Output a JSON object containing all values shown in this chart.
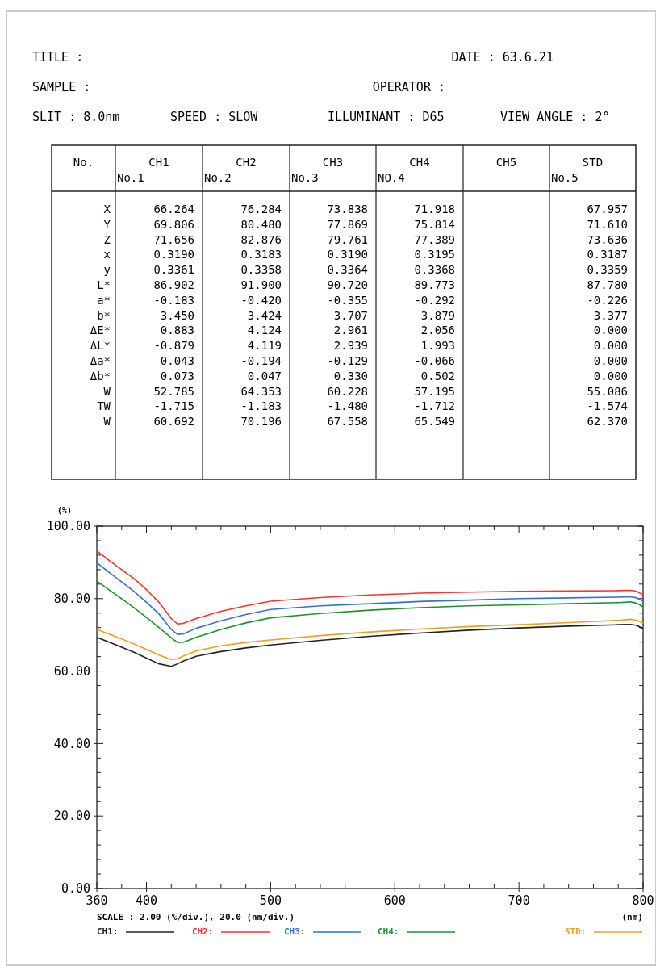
{
  "chart_data": [
    {
      "type": "other",
      "annotations": [
        "TITLE  :",
        "DATE : 63.6.21",
        "SAMPLE :",
        "OPERATOR :",
        "SLIT : 8.0nm",
        "SPEED : SLOW",
        "ILLUMINANT : D65",
        "VIEW ANGLE : 2°"
      ],
      "ylabel": "No.",
      "categories": [
        "CH1\nNo.1",
        "CH2\nNo.2",
        "CH3\nNo.3",
        "CH4\nNO.4",
        "CH5",
        "STD\nNo.5"
      ],
      "y_categories": [
        "X",
        "Y",
        "Z",
        "x",
        "y",
        "L*",
        "a*",
        "b*",
        "ΔE*",
        "ΔL*",
        "Δa*",
        "Δb*",
        "W",
        "TW",
        "W"
      ],
      "cell_labels": [
        [
          "66.264",
          "76.284",
          "73.838",
          "71.918",
          null,
          "67.957"
        ],
        [
          "69.806",
          "80.480",
          "77.869",
          "75.814",
          null,
          "71.610"
        ],
        [
          "71.656",
          "82.876",
          "79.761",
          "77.389",
          null,
          "73.636"
        ],
        [
          "0.3190",
          "0.3183",
          "0.3190",
          "0.3195",
          null,
          "0.3187"
        ],
        [
          "0.3361",
          "0.3358",
          "0.3364",
          "0.3368",
          null,
          "0.3359"
        ],
        [
          "86.902",
          "91.900",
          "90.720",
          "89.773",
          null,
          "87.780"
        ],
        [
          "-0.183",
          "-0.420",
          "-0.355",
          "-0.292",
          null,
          "-0.226"
        ],
        [
          "3.450",
          "3.424",
          "3.707",
          "3.879",
          null,
          "3.377"
        ],
        [
          "0.883",
          "4.124",
          "2.961",
          "2.056",
          null,
          "0.000"
        ],
        [
          "-0.879",
          "4.119",
          "2.939",
          "1.993",
          null,
          "0.000"
        ],
        [
          "0.043",
          "-0.194",
          "-0.129",
          "-0.066",
          null,
          "0.000"
        ],
        [
          "0.073",
          "0.047",
          "0.330",
          "0.502",
          null,
          "0.000"
        ],
        [
          "52.785",
          "64.353",
          "60.228",
          "57.195",
          null,
          "55.086"
        ],
        [
          "-1.715",
          "-1.183",
          "-1.480",
          "-1.712",
          null,
          "-1.574"
        ],
        [
          "60.692",
          "70.196",
          "67.558",
          "65.549",
          null,
          "62.370"
        ]
      ]
    },
    {
      "type": "line",
      "xlabel": "(nm)",
      "ylabel": "(%)",
      "annotations": [
        "SCALE : 2.00 (%/div.),  20.0 (nm/div.)"
      ],
      "legend": "bottom",
      "grid": false,
      "marker": "none",
      "line_style": "solid",
      "xlim": [
        360,
        800
      ],
      "ylim": [
        0,
        100
      ],
      "xticks": [
        360,
        {
          "value": 380,
          "label": null
        },
        400,
        {
          "value": 420,
          "label": null
        },
        {
          "value": 440,
          "label": null
        },
        {
          "value": 460,
          "label": null
        },
        {
          "value": 480,
          "label": null
        },
        500,
        {
          "value": 520,
          "label": null
        },
        {
          "value": 540,
          "label": null
        },
        {
          "value": 560,
          "label": null
        },
        {
          "value": 580,
          "label": null
        },
        600,
        {
          "value": 620,
          "label": null
        },
        {
          "value": 640,
          "label": null
        },
        {
          "value": 660,
          "label": null
        },
        {
          "value": 680,
          "label": null
        },
        700,
        {
          "value": 720,
          "label": null
        },
        {
          "value": 740,
          "label": null
        },
        {
          "value": 760,
          "label": null
        },
        {
          "value": 780,
          "label": null
        },
        800
      ],
      "yticks": [
        {
          "value": 0,
          "label": "0.00"
        },
        {
          "value": 4,
          "label": null
        },
        {
          "value": 8,
          "label": null
        },
        {
          "value": 12,
          "label": null
        },
        {
          "value": 16,
          "label": null
        },
        {
          "value": 20,
          "label": "20.00"
        },
        {
          "value": 24,
          "label": null
        },
        {
          "value": 28,
          "label": null
        },
        {
          "value": 32,
          "label": null
        },
        {
          "value": 36,
          "label": null
        },
        {
          "value": 40,
          "label": "40.00"
        },
        {
          "value": 44,
          "label": null
        },
        {
          "value": 48,
          "label": null
        },
        {
          "value": 52,
          "label": null
        },
        {
          "value": 56,
          "label": null
        },
        {
          "value": 60,
          "label": "60.00"
        },
        {
          "value": 64,
          "label": null
        },
        {
          "value": 68,
          "label": null
        },
        {
          "value": 72,
          "label": null
        },
        {
          "value": 76,
          "label": null
        },
        {
          "value": 80,
          "label": "80.00"
        },
        {
          "value": 84,
          "label": null
        },
        {
          "value": 88,
          "label": null
        },
        {
          "value": 92,
          "label": null
        },
        {
          "value": 96,
          "label": null
        },
        {
          "value": 100,
          "label": "100.00"
        }
      ],
      "x": [
        360,
        370,
        380,
        390,
        400,
        410,
        420,
        425,
        430,
        440,
        460,
        480,
        500,
        540,
        580,
        620,
        660,
        700,
        740,
        780,
        790,
        795,
        800
      ],
      "series": [
        {
          "name": "CH1:",
          "color": "#222222",
          "values": [
            69.3,
            68.0,
            66.6,
            65.2,
            63.6,
            62.0,
            61.3,
            62.0,
            62.8,
            64.1,
            65.4,
            66.4,
            67.2,
            68.5,
            69.6,
            70.5,
            71.3,
            71.9,
            72.4,
            72.8,
            72.9,
            72.6,
            71.7
          ]
        },
        {
          "name": "CH2:",
          "color": "#ff3030",
          "values": [
            93.2,
            90.5,
            88.0,
            85.5,
            82.5,
            79.0,
            74.5,
            73.0,
            73.2,
            74.5,
            76.5,
            78.0,
            79.3,
            80.3,
            81.0,
            81.5,
            81.8,
            82.0,
            82.1,
            82.2,
            82.3,
            82.0,
            81.0
          ]
        },
        {
          "name": "CH3:",
          "color": "#3070e0",
          "values": [
            89.9,
            87.2,
            84.6,
            82.0,
            79.0,
            75.8,
            71.5,
            70.1,
            70.3,
            71.8,
            73.9,
            75.6,
            77.0,
            78.0,
            78.6,
            79.2,
            79.6,
            80.0,
            80.2,
            80.4,
            80.5,
            80.2,
            79.3
          ]
        },
        {
          "name": "CH4:",
          "color": "#209030",
          "values": [
            84.9,
            82.4,
            80.0,
            77.5,
            74.8,
            72.0,
            69.2,
            67.9,
            68.0,
            69.3,
            71.5,
            73.3,
            74.7,
            75.9,
            76.8,
            77.5,
            78.0,
            78.3,
            78.6,
            78.9,
            79.1,
            78.7,
            77.8
          ]
        },
        {
          "name": "STD:",
          "color": "#f0a020",
          "values": [
            71.5,
            70.2,
            68.9,
            67.5,
            66.0,
            64.4,
            63.2,
            63.4,
            64.2,
            65.6,
            67.0,
            67.9,
            68.6,
            69.8,
            70.8,
            71.6,
            72.3,
            72.8,
            73.4,
            74.0,
            74.3,
            74.0,
            73.2
          ]
        }
      ]
    }
  ]
}
